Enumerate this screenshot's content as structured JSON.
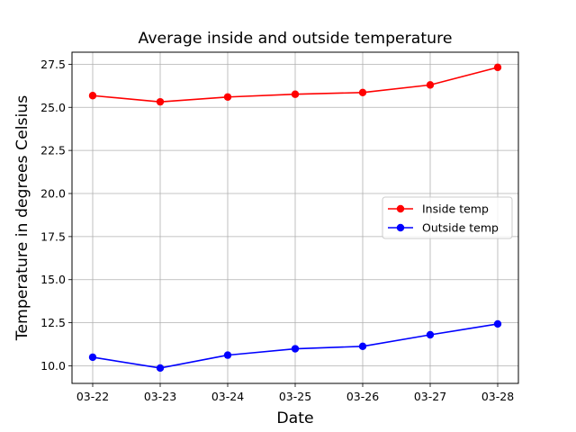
{
  "chart_data": {
    "type": "line",
    "title": "Average inside and outside temperature",
    "xlabel": "Date",
    "ylabel": "Temperature in degrees Celsius",
    "categories": [
      "03-22",
      "03-23",
      "03-24",
      "03-25",
      "03-26",
      "03-27",
      "03-28"
    ],
    "series": [
      {
        "name": "Inside temp",
        "color": "#ff0000",
        "marker": "circle",
        "values": [
          25.68,
          25.32,
          25.6,
          25.76,
          25.86,
          26.3,
          27.32
        ]
      },
      {
        "name": "Outside temp",
        "color": "#0000ff",
        "marker": "circle",
        "values": [
          10.5,
          9.87,
          10.62,
          10.99,
          11.13,
          11.8,
          12.43
        ]
      }
    ],
    "ylim": [
      8.98,
      28.2
    ],
    "yticks": [
      "10.0",
      "12.5",
      "15.0",
      "17.5",
      "20.0",
      "22.5",
      "25.0",
      "27.5"
    ],
    "grid": true,
    "legend_position": "center-right"
  }
}
